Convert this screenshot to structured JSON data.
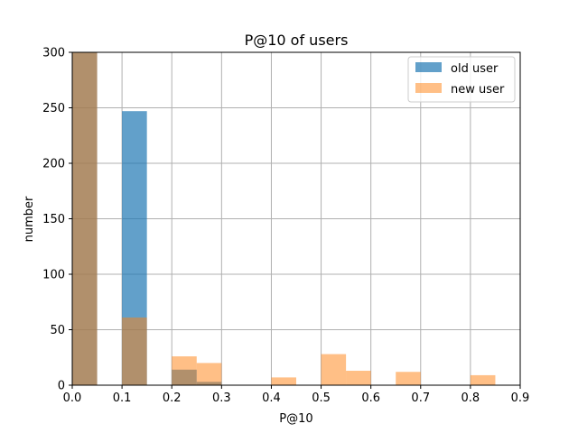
{
  "chart_data": {
    "type": "bar",
    "title": "P@10 of users",
    "xlabel": "P@10",
    "ylabel": "number",
    "xlim": [
      0,
      0.9
    ],
    "ylim": [
      0,
      300
    ],
    "x_ticks": [
      "0.0",
      "0.1",
      "0.2",
      "0.3",
      "0.4",
      "0.5",
      "0.6",
      "0.7",
      "0.8",
      "0.9"
    ],
    "y_ticks": [
      "0",
      "50",
      "100",
      "150",
      "200",
      "250",
      "300"
    ],
    "grid": true,
    "legend_position": "top-right",
    "bin_edges": [
      0.0,
      0.05,
      0.1,
      0.15,
      0.2,
      0.25,
      0.3,
      0.35,
      0.4,
      0.45,
      0.5,
      0.55,
      0.6,
      0.65,
      0.7,
      0.75,
      0.8,
      0.85
    ],
    "series": [
      {
        "name": "old user",
        "color": "#1f77b4",
        "values": [
          300,
          0,
          247,
          0,
          14,
          3,
          0,
          0,
          0,
          0,
          0,
          0,
          0,
          0,
          0,
          0,
          0
        ]
      },
      {
        "name": "new user",
        "color": "#ff7f0e",
        "values": [
          300,
          0,
          61,
          0,
          26,
          20,
          0,
          0,
          7,
          0,
          28,
          13,
          0,
          12,
          0,
          0,
          9
        ]
      }
    ]
  }
}
